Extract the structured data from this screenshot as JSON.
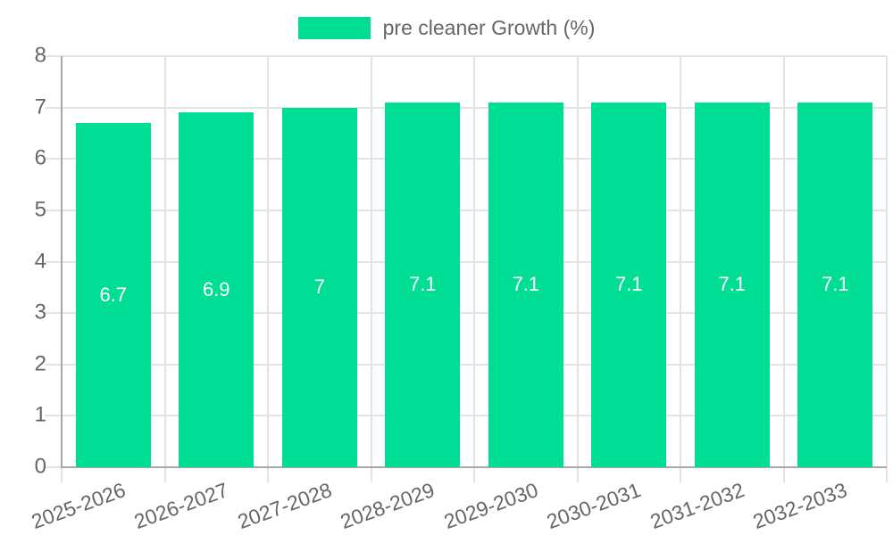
{
  "chart_data": {
    "type": "bar",
    "title": "",
    "xlabel": "",
    "ylabel": "",
    "legend": {
      "position": "top",
      "label": "pre cleaner Growth (%)"
    },
    "categories": [
      "2025-2026",
      "2026-2027",
      "2027-2028",
      "2028-2029",
      "2029-2030",
      "2030-2031",
      "2031-2032",
      "2032-2033"
    ],
    "series": [
      {
        "name": "pre cleaner Growth (%)",
        "values": [
          6.7,
          6.9,
          7,
          7.1,
          7.1,
          7.1,
          7.1,
          7.1
        ]
      }
    ],
    "data_labels": [
      "6.7",
      "6.9",
      "7",
      "7.1",
      "7.1",
      "7.1",
      "7.1",
      "7.1"
    ],
    "ylim": [
      0,
      8
    ],
    "yticks": [
      0,
      1,
      2,
      3,
      4,
      5,
      6,
      7,
      8
    ],
    "grid": true,
    "x_label_rotation_deg": -20,
    "colors": {
      "bar": "#00DE95",
      "grid": "#e3e3e3",
      "axis": "#a8a8a8",
      "tick_text": "#666666",
      "legend_text": "#666666",
      "data_label_text": "#ffffff",
      "background": "#ffffff"
    }
  }
}
